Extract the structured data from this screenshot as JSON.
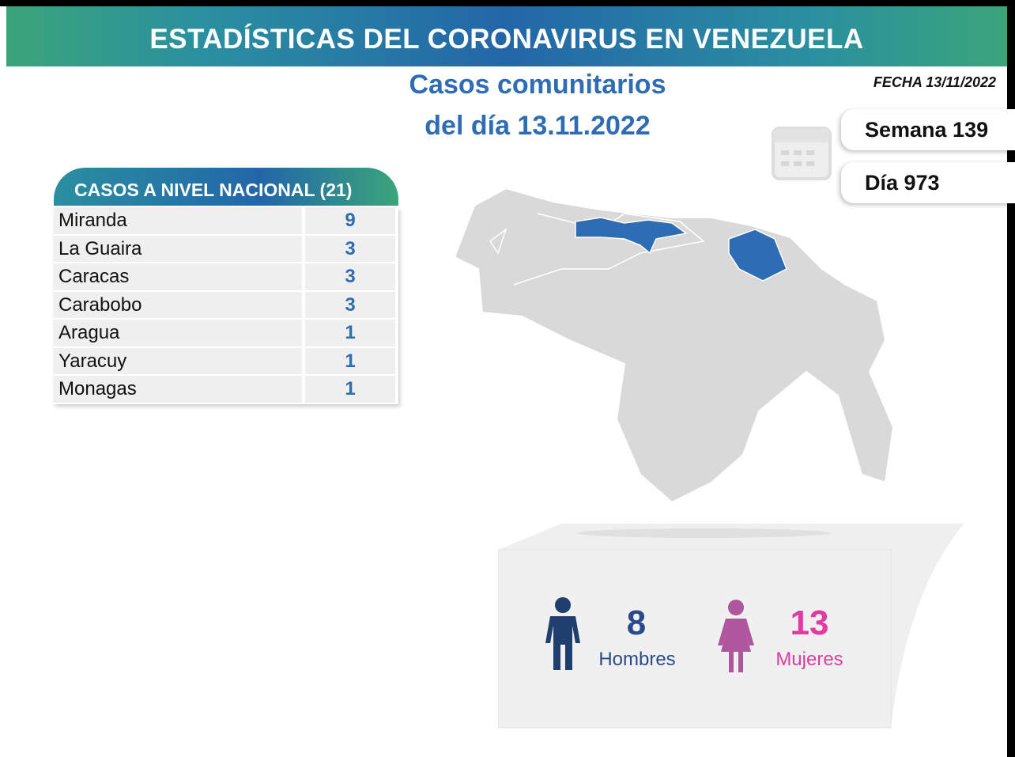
{
  "header": {
    "title": "ESTADÍSTICAS DEL CORONAVIRUS EN VENEZUELA"
  },
  "subtitle": {
    "line1": "Casos comunitarios",
    "line2": "del día 13.11.2022"
  },
  "date": "FECHA 13/11/2022",
  "week": "Semana 139",
  "day": "Día 973",
  "table": {
    "title": "CASOS A NIVEL NACIONAL  (21)",
    "rows": [
      [
        "Miranda",
        9
      ],
      [
        "La Guaira",
        3
      ],
      [
        "Caracas",
        3
      ],
      [
        "Carabobo",
        3
      ],
      [
        "Aragua",
        1
      ],
      [
        "Yaracuy",
        1
      ],
      [
        "Monagas",
        1
      ]
    ]
  },
  "gender": {
    "men": {
      "count": 8,
      "label": "Hombres"
    },
    "women": {
      "count": 13,
      "label": "Mujeres"
    }
  }
}
